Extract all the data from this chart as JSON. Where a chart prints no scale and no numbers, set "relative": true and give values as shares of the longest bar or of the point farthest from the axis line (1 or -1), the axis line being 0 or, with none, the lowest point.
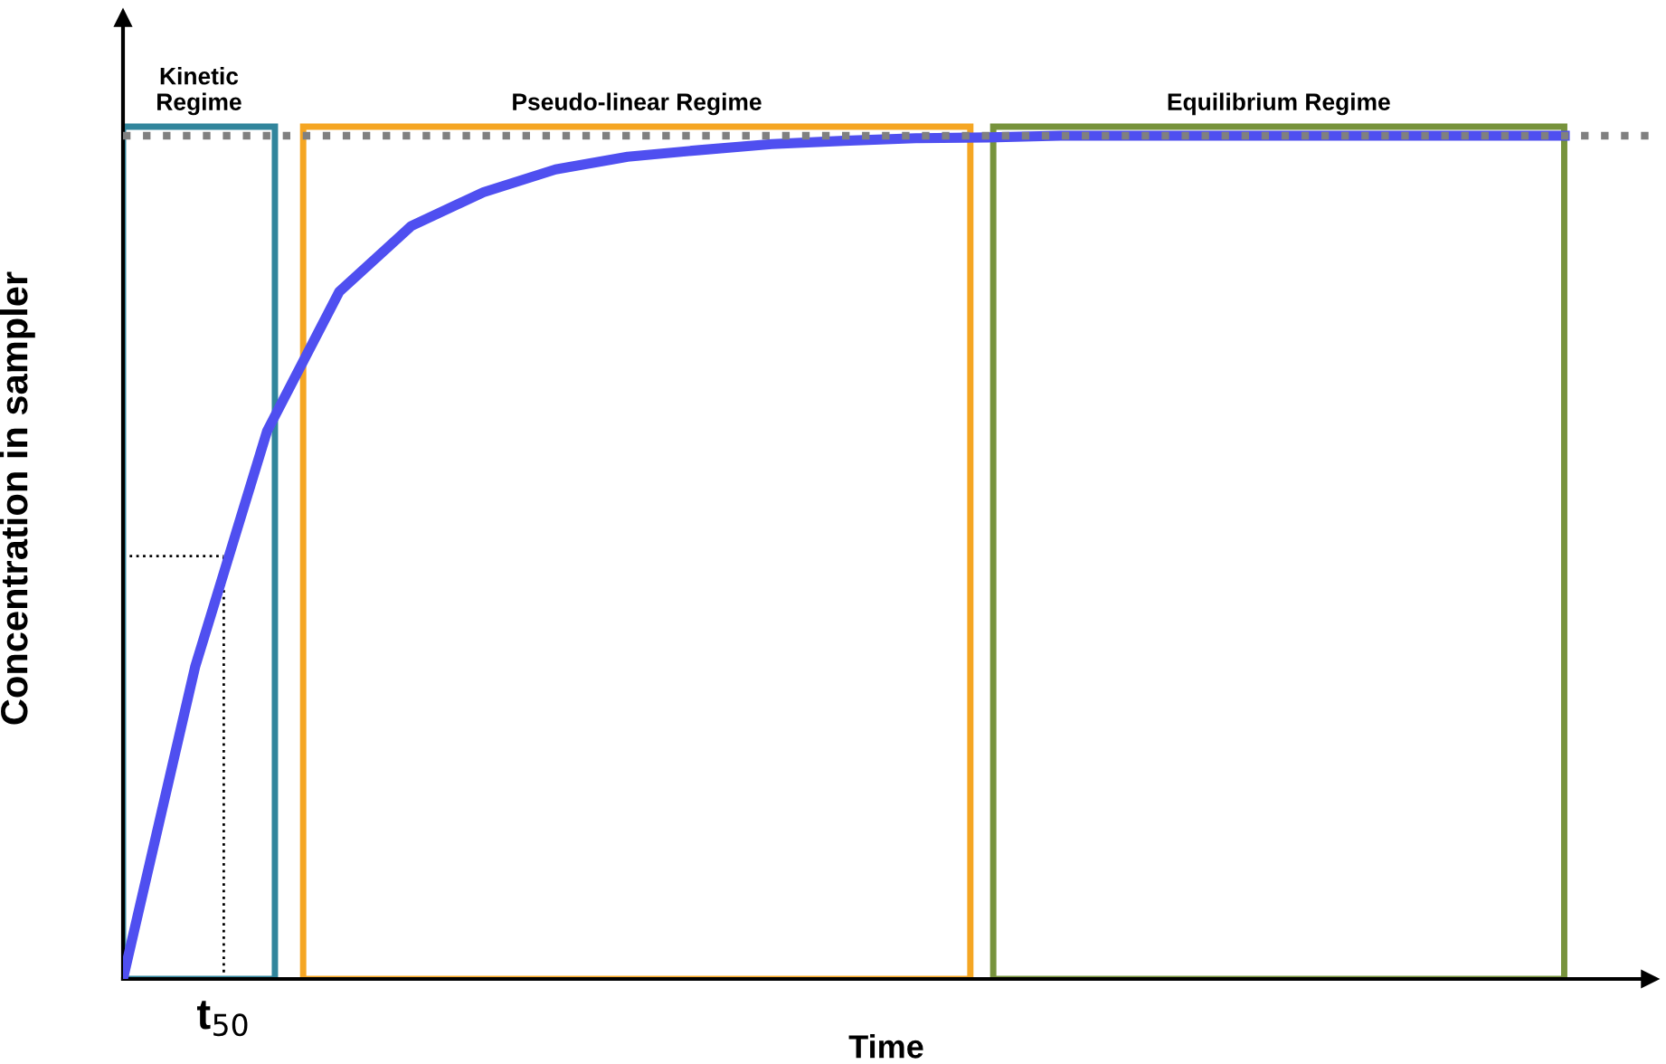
{
  "chart_data": {
    "type": "line",
    "relative": true,
    "xlabel": "Time",
    "ylabel": "Concentration in sampler",
    "categories": [
      null,
      null,
      null,
      null,
      null,
      null,
      null,
      null,
      null,
      null,
      null,
      null,
      null,
      null,
      null,
      null,
      null,
      null,
      null,
      null,
      null
    ],
    "series": [
      {
        "color": "#4f4ff0",
        "values": [
          0,
          0.37,
          0.65,
          0.815,
          0.893,
          0.933,
          0.96,
          0.975,
          0.983,
          0.99,
          0.994,
          0.997,
          0.998,
          1,
          1,
          1,
          1,
          1,
          1,
          1,
          1
        ]
      }
    ],
    "ref_lines": [
      {
        "axis": "y",
        "value": 1,
        "color": "#808080",
        "line_style": "dotted"
      }
    ],
    "annotations": [
      "Kinetic\nRegime",
      "Pseudo-linear Regime",
      "Equilibrium Regime",
      "t$_{50}$"
    ]
  }
}
